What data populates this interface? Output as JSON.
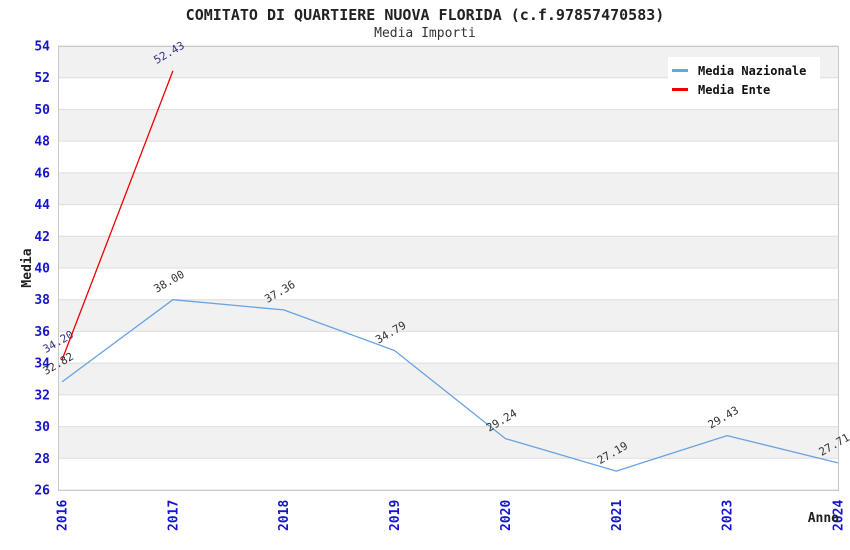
{
  "header": {
    "title": "COMITATO DI QUARTIERE NUOVA FLORIDA (c.f.97857470583)",
    "subtitle": "Media Importi"
  },
  "chart_data": {
    "type": "line",
    "title": "COMITATO DI QUARTIERE NUOVA FLORIDA (c.f.97857470583)",
    "subtitle": "Media Importi",
    "categories": [
      "2016",
      "2017",
      "2018",
      "2019",
      "2020",
      "2021",
      "2023",
      "2024"
    ],
    "series": [
      {
        "name": "Media Nazionale",
        "color": "#69a3e2",
        "label_color": "#333333",
        "values": [
          32.82,
          38.0,
          37.36,
          34.79,
          29.24,
          27.19,
          29.43,
          27.71
        ]
      },
      {
        "name": "Media Ente",
        "color": "#ee0000",
        "label_color": "#333388",
        "values": [
          34.2,
          52.43,
          null,
          null,
          null,
          null,
          null,
          null
        ]
      }
    ],
    "xlabel": "Anno",
    "ylabel": "Media",
    "ylim": [
      26,
      54
    ],
    "ytick_step": 2,
    "grid": "horizontal-bands",
    "legend_position": "top-right",
    "styles": {
      "tick_label_color": "#1515cc",
      "band_color": "#f1f1f1",
      "band_alt_color": "#ffffff",
      "grid_line_color": "#dedede",
      "plot_border_color": "#c9c9c9",
      "axis_title_color": "#222222"
    }
  }
}
